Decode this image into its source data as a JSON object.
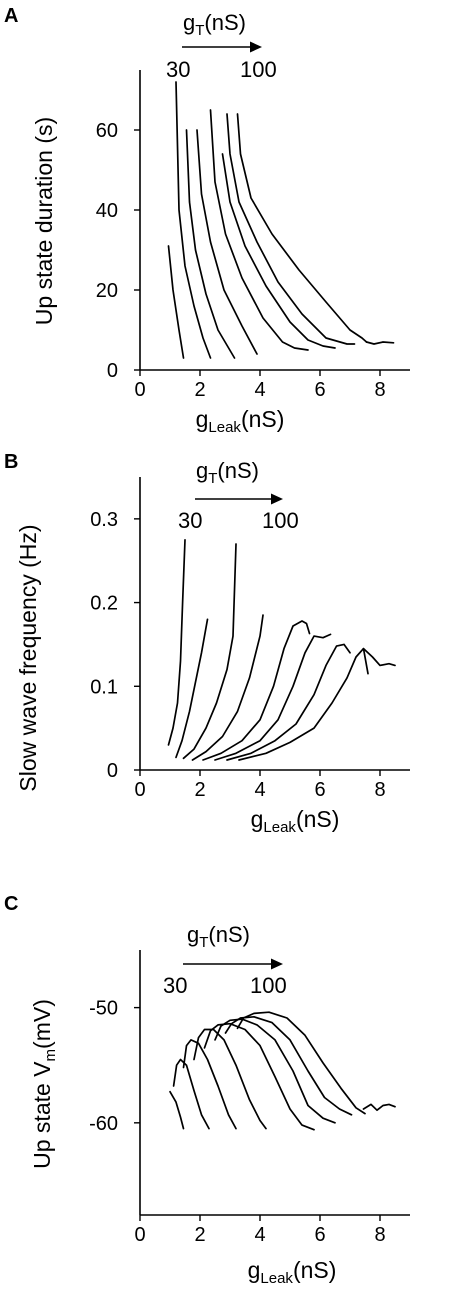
{
  "chart_data": [
    {
      "panel": "A",
      "type": "line",
      "ylabel": "Up state duration (s)",
      "xlabel_main": "g",
      "xlabel_sub": "Leak",
      "xlabel_unit": "(nS)",
      "xlim": [
        0,
        9
      ],
      "ylim": [
        0,
        75
      ],
      "xticks": [
        0,
        2,
        4,
        6,
        8
      ],
      "yticks": [
        0,
        20,
        40,
        60
      ],
      "annotation": {
        "main": "g",
        "sub": "T",
        "unit": "(nS)",
        "from": "30",
        "to": "100"
      },
      "series": [
        {
          "x": [
            0.95,
            1.1,
            1.3,
            1.45
          ],
          "y": [
            31,
            20,
            10,
            3
          ]
        },
        {
          "x": [
            1.2,
            1.3,
            1.5,
            1.8,
            2.1,
            2.35
          ],
          "y": [
            72,
            40,
            26,
            16,
            8,
            3
          ]
        },
        {
          "x": [
            1.55,
            1.65,
            1.85,
            2.2,
            2.6,
            3.15
          ],
          "y": [
            60,
            42,
            30,
            19,
            10,
            3
          ]
        },
        {
          "x": [
            1.9,
            2.05,
            2.35,
            2.8,
            3.4,
            3.9
          ],
          "y": [
            60,
            44,
            32,
            20,
            11,
            4
          ]
        },
        {
          "x": [
            2.35,
            2.5,
            2.85,
            3.4,
            4.1,
            4.75,
            5.15,
            5.6
          ],
          "y": [
            65,
            47,
            34,
            23,
            13,
            7,
            5.5,
            5
          ]
        },
        {
          "x": [
            2.75,
            3.0,
            3.5,
            4.2,
            5.0,
            5.6,
            6.1,
            6.5
          ],
          "y": [
            54,
            42,
            31,
            21,
            12,
            7.5,
            6,
            5.5
          ]
        },
        {
          "x": [
            2.9,
            3.0,
            3.3,
            3.9,
            4.6,
            5.4,
            6.2,
            6.9,
            7.15
          ],
          "y": [
            64,
            54,
            42,
            32,
            22,
            14,
            8,
            6.5,
            6.5
          ]
        },
        {
          "x": [
            3.25,
            3.35,
            3.7,
            4.4,
            5.3,
            6.2,
            7.0,
            7.4,
            7.55
          ],
          "y": [
            64,
            54,
            43,
            34,
            25,
            17,
            10,
            8,
            7
          ]
        },
        {
          "x": [
            7.55,
            7.8,
            8.1,
            8.45
          ],
          "y": [
            7,
            6.5,
            7,
            6.8
          ]
        }
      ]
    },
    {
      "panel": "B",
      "type": "line",
      "ylabel": "Slow wave frequency (Hz)",
      "xlabel_main": "g",
      "xlabel_sub": "Leak",
      "xlabel_unit": "(nS)",
      "xlim": [
        0,
        9
      ],
      "ylim": [
        0,
        0.35
      ],
      "xticks": [
        0,
        2,
        4,
        6,
        8
      ],
      "yticks": [
        0,
        0.1,
        0.2,
        0.3
      ],
      "ytick_labels": [
        "0",
        "0.1",
        "0.2",
        "0.3"
      ],
      "annotation": {
        "main": "g",
        "sub": "T",
        "unit": "(nS)",
        "from": "30",
        "to": "100"
      },
      "series": [
        {
          "x": [
            0.95,
            1.1,
            1.25,
            1.35,
            1.42,
            1.5
          ],
          "y": [
            0.03,
            0.05,
            0.08,
            0.13,
            0.2,
            0.275
          ]
        },
        {
          "x": [
            1.2,
            1.4,
            1.65,
            1.85,
            2.05,
            2.25
          ],
          "y": [
            0.015,
            0.035,
            0.07,
            0.105,
            0.14,
            0.18
          ]
        },
        {
          "x": [
            1.45,
            1.8,
            2.2,
            2.55,
            2.9,
            3.1,
            3.2
          ],
          "y": [
            0.014,
            0.025,
            0.05,
            0.08,
            0.12,
            0.16,
            0.27
          ]
        },
        {
          "x": [
            1.75,
            2.2,
            2.75,
            3.25,
            3.65,
            4.0,
            4.1
          ],
          "y": [
            0.012,
            0.022,
            0.04,
            0.07,
            0.11,
            0.16,
            0.185
          ]
        },
        {
          "x": [
            2.1,
            2.7,
            3.4,
            4.0,
            4.45,
            4.8,
            5.1,
            5.4,
            5.55,
            5.65
          ],
          "y": [
            0.012,
            0.02,
            0.035,
            0.06,
            0.1,
            0.145,
            0.172,
            0.178,
            0.175,
            0.163
          ]
        },
        {
          "x": [
            2.5,
            3.2,
            4.0,
            4.6,
            5.1,
            5.5,
            5.8,
            6.1,
            6.35
          ],
          "y": [
            0.012,
            0.02,
            0.035,
            0.06,
            0.1,
            0.14,
            0.16,
            0.158,
            0.162
          ]
        },
        {
          "x": [
            2.9,
            3.7,
            4.5,
            5.2,
            5.8,
            6.2,
            6.55,
            6.8,
            7.0
          ],
          "y": [
            0.012,
            0.02,
            0.035,
            0.055,
            0.09,
            0.125,
            0.148,
            0.15,
            0.14
          ]
        },
        {
          "x": [
            3.3,
            4.2,
            5.0,
            5.8,
            6.4,
            6.9,
            7.2,
            7.45,
            7.6
          ],
          "y": [
            0.012,
            0.02,
            0.033,
            0.05,
            0.08,
            0.11,
            0.135,
            0.145,
            0.115
          ]
        },
        {
          "x": [
            7.45,
            7.75,
            8.0,
            8.3,
            8.5
          ],
          "y": [
            0.145,
            0.135,
            0.125,
            0.127,
            0.125
          ]
        }
      ]
    },
    {
      "panel": "C",
      "type": "line",
      "ylabel_main": "Up state V",
      "ylabel_sub": "m",
      "ylabel_unit": "(mV)",
      "xlabel_main": "g",
      "xlabel_sub": "Leak",
      "xlabel_unit": "(nS)",
      "xlim": [
        0,
        9
      ],
      "ylim": [
        -68,
        -45
      ],
      "xticks": [
        0,
        2,
        4,
        6,
        8
      ],
      "yticks": [
        -60,
        -50
      ],
      "ytick_labels": [
        "-60",
        "-50"
      ],
      "annotation": {
        "main": "g",
        "sub": "T",
        "unit": "(nS)",
        "from": "30",
        "to": "100"
      },
      "series": [
        {
          "x": [
            1.0,
            1.2,
            1.35,
            1.45
          ],
          "y": [
            -57.3,
            -58.2,
            -59.5,
            -60.5
          ]
        },
        {
          "x": [
            1.12,
            1.22,
            1.35,
            1.55,
            1.8,
            2.05,
            2.3
          ],
          "y": [
            -56.8,
            -55.0,
            -54.5,
            -55.0,
            -57.2,
            -59.3,
            -60.5
          ]
        },
        {
          "x": [
            1.45,
            1.55,
            1.7,
            1.95,
            2.25,
            2.6,
            2.95,
            3.2
          ],
          "y": [
            -55.2,
            -53.3,
            -52.8,
            -53.1,
            -54.5,
            -56.8,
            -59.3,
            -60.5
          ]
        },
        {
          "x": [
            1.8,
            1.95,
            2.15,
            2.45,
            2.8,
            3.2,
            3.65,
            4.0,
            4.2
          ],
          "y": [
            -54.5,
            -52.6,
            -51.9,
            -51.9,
            -52.8,
            -55.0,
            -58.0,
            -59.8,
            -60.5
          ]
        },
        {
          "x": [
            2.15,
            2.35,
            2.6,
            3.0,
            3.5,
            4.0,
            4.5,
            5.0,
            5.4,
            5.8
          ],
          "y": [
            -53.5,
            -52.0,
            -51.5,
            -51.4,
            -51.9,
            -53.3,
            -56.0,
            -58.8,
            -60.2,
            -60.6
          ]
        },
        {
          "x": [
            2.5,
            2.7,
            3.0,
            3.4,
            3.9,
            4.5,
            5.1,
            5.6,
            6.1,
            6.5
          ],
          "y": [
            -52.8,
            -51.6,
            -51.1,
            -51.0,
            -51.5,
            -52.8,
            -55.5,
            -58.5,
            -59.6,
            -60.0
          ]
        },
        {
          "x": [
            2.85,
            3.05,
            3.35,
            3.8,
            4.4,
            5.0,
            5.6,
            6.15,
            6.65,
            7.05
          ],
          "y": [
            -52.2,
            -51.4,
            -50.9,
            -50.8,
            -51.3,
            -52.8,
            -55.5,
            -57.8,
            -58.8,
            -59.3
          ]
        },
        {
          "x": [
            3.25,
            3.45,
            3.8,
            4.3,
            4.9,
            5.5,
            6.1,
            6.7,
            7.2,
            7.5
          ],
          "y": [
            -51.8,
            -50.9,
            -50.5,
            -50.4,
            -50.9,
            -52.4,
            -54.8,
            -57.0,
            -58.7,
            -59.2
          ]
        },
        {
          "x": [
            7.45,
            7.7,
            7.9,
            8.1,
            8.3,
            8.5
          ],
          "y": [
            -58.8,
            -58.4,
            -58.9,
            -58.5,
            -58.4,
            -58.6
          ]
        }
      ]
    }
  ]
}
